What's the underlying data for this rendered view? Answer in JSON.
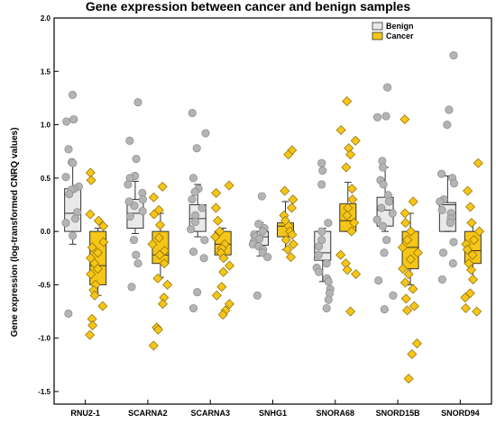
{
  "chart_data": {
    "type": "box",
    "title": "Gene expression between cancer and benign samples",
    "xlabel": "",
    "ylabel": "Gene expression (log-transformed CNRQ values)",
    "ylim": [
      -1.5,
      2.0
    ],
    "yticks": [
      "-1.5",
      "-1.0",
      "-0.5",
      "0.0",
      "0.5",
      "1.0",
      "1.5",
      "2.0"
    ],
    "grid": false,
    "legend_position": "top-right",
    "categories": [
      "RNU2-1",
      "SCARNA2",
      "SCARNA3",
      "SNHG1",
      "SNORA68",
      "SNORD15B",
      "SNORD94"
    ],
    "series": [
      {
        "name": "Benign",
        "color": "#e9e9e9",
        "marker": "circle",
        "marker_color": "#b4b4b4",
        "box": [
          {
            "min": -0.12,
            "q1": 0.0,
            "median": 0.17,
            "q3": 0.4,
            "max": 0.64
          },
          {
            "min": -0.02,
            "q1": 0.03,
            "median": 0.17,
            "q3": 0.3,
            "max": 0.47
          },
          {
            "min": -0.05,
            "q1": 0.0,
            "median": 0.12,
            "q3": 0.25,
            "max": 0.44
          },
          {
            "min": -0.23,
            "q1": -0.13,
            "median": -0.05,
            "q3": 0.0,
            "max": 0.08
          },
          {
            "min": -0.47,
            "q1": -0.27,
            "median": -0.2,
            "q3": 0.0,
            "max": 0.03
          },
          {
            "min": 0.0,
            "q1": 0.05,
            "median": 0.2,
            "q3": 0.32,
            "max": 0.6
          },
          {
            "min": 0.0,
            "q1": 0.0,
            "median": 0.25,
            "q3": 0.27,
            "max": 0.52
          }
        ],
        "points": [
          [
            1.28,
            1.05,
            1.03,
            0.77,
            0.65,
            0.64,
            0.51,
            0.42,
            0.4,
            0.39,
            0.35,
            0.18,
            0.12,
            0.08,
            -0.04,
            -0.77
          ],
          [
            1.21,
            0.85,
            0.68,
            0.52,
            0.5,
            0.44,
            0.36,
            0.3,
            0.28,
            0.24,
            0.19,
            0.14,
            -0.08,
            -0.22,
            -0.3,
            -0.52
          ],
          [
            1.11,
            0.92,
            0.78,
            0.5,
            0.4,
            0.37,
            0.3,
            0.22,
            0.15,
            0.09,
            0.02,
            -0.08,
            -0.19,
            -0.25,
            -0.57,
            -0.72
          ],
          [
            0.33,
            0.07,
            0.03,
            0.0,
            -0.03,
            -0.05,
            -0.07,
            -0.1,
            -0.12,
            -0.14,
            -0.17,
            -0.2,
            -0.24,
            -0.6
          ],
          [
            0.64,
            0.57,
            0.44,
            0.08,
            0.0,
            -0.08,
            -0.14,
            -0.22,
            -0.3,
            -0.34,
            -0.38,
            -0.44,
            -0.47,
            -0.54,
            -0.58,
            -0.64,
            -0.72
          ],
          [
            1.35,
            1.08,
            1.07,
            0.66,
            0.6,
            0.48,
            0.44,
            0.34,
            0.28,
            0.22,
            0.17,
            0.11,
            0.05,
            -0.08,
            -0.2,
            -0.46,
            -0.6,
            -0.73
          ],
          [
            1.65,
            1.14,
            1.0,
            0.54,
            0.5,
            0.45,
            0.3,
            0.28,
            0.2,
            0.17,
            0.12,
            0.08,
            -0.1,
            -0.2,
            -0.3,
            -0.45
          ]
        ]
      },
      {
        "name": "Cancer",
        "color": "#f5c518",
        "marker": "diamond",
        "marker_color": "#f5c518",
        "box": [
          {
            "min": -0.6,
            "q1": -0.5,
            "median": -0.32,
            "q3": 0.0,
            "max": 0.03
          },
          {
            "min": -0.43,
            "q1": -0.3,
            "median": -0.22,
            "q3": 0.0,
            "max": 0.17
          },
          {
            "min": -0.23,
            "q1": -0.22,
            "median": -0.12,
            "q3": 0.0,
            "max": 0.03
          },
          {
            "min": -0.17,
            "q1": -0.05,
            "median": 0.05,
            "q3": 0.08,
            "max": 0.28
          },
          {
            "min": 0.0,
            "q1": 0.0,
            "median": 0.1,
            "q3": 0.26,
            "max": 0.46
          },
          {
            "min": -0.5,
            "q1": -0.35,
            "median": -0.15,
            "q3": 0.0,
            "max": 0.17
          },
          {
            "min": -0.46,
            "q1": -0.3,
            "median": -0.18,
            "q3": 0.0,
            "max": 0.08
          }
        ],
        "points": [
          [
            0.55,
            0.48,
            0.16,
            0.1,
            0.05,
            -0.1,
            -0.15,
            -0.2,
            -0.25,
            -0.3,
            -0.35,
            -0.4,
            -0.5,
            -0.55,
            -0.6,
            -0.7,
            -0.82,
            -0.88,
            -0.97
          ],
          [
            0.42,
            0.32,
            0.2,
            0.16,
            0.06,
            -0.06,
            -0.12,
            -0.18,
            -0.22,
            -0.3,
            -0.44,
            -0.5,
            -0.62,
            -0.68,
            -0.9,
            -0.92,
            -1.07
          ],
          [
            0.43,
            0.36,
            0.22,
            0.1,
            0.0,
            -0.05,
            -0.12,
            -0.16,
            -0.2,
            -0.25,
            -0.32,
            -0.38,
            -0.52,
            -0.6,
            -0.68,
            -0.74,
            -0.78
          ],
          [
            0.76,
            0.72,
            0.38,
            0.3,
            0.22,
            0.15,
            0.1,
            0.05,
            0.0,
            -0.03,
            -0.08,
            -0.12,
            -0.17,
            -0.24
          ],
          [
            1.22,
            0.95,
            0.85,
            0.78,
            0.72,
            0.6,
            0.4,
            0.3,
            0.22,
            0.15,
            0.08,
            0.0,
            -0.22,
            -0.3,
            -0.36,
            -0.4,
            -0.75
          ],
          [
            1.05,
            0.28,
            0.17,
            0.08,
            0.0,
            -0.08,
            -0.15,
            -0.2,
            -0.26,
            -0.35,
            -0.4,
            -0.48,
            -0.54,
            -0.63,
            -0.7,
            -0.74,
            -1.05,
            -1.15,
            -1.38
          ],
          [
            0.64,
            0.38,
            0.23,
            0.08,
            0.0,
            -0.08,
            -0.12,
            -0.17,
            -0.22,
            -0.3,
            -0.36,
            -0.45,
            -0.58,
            -0.62,
            -0.72,
            -0.75
          ]
        ]
      }
    ]
  }
}
